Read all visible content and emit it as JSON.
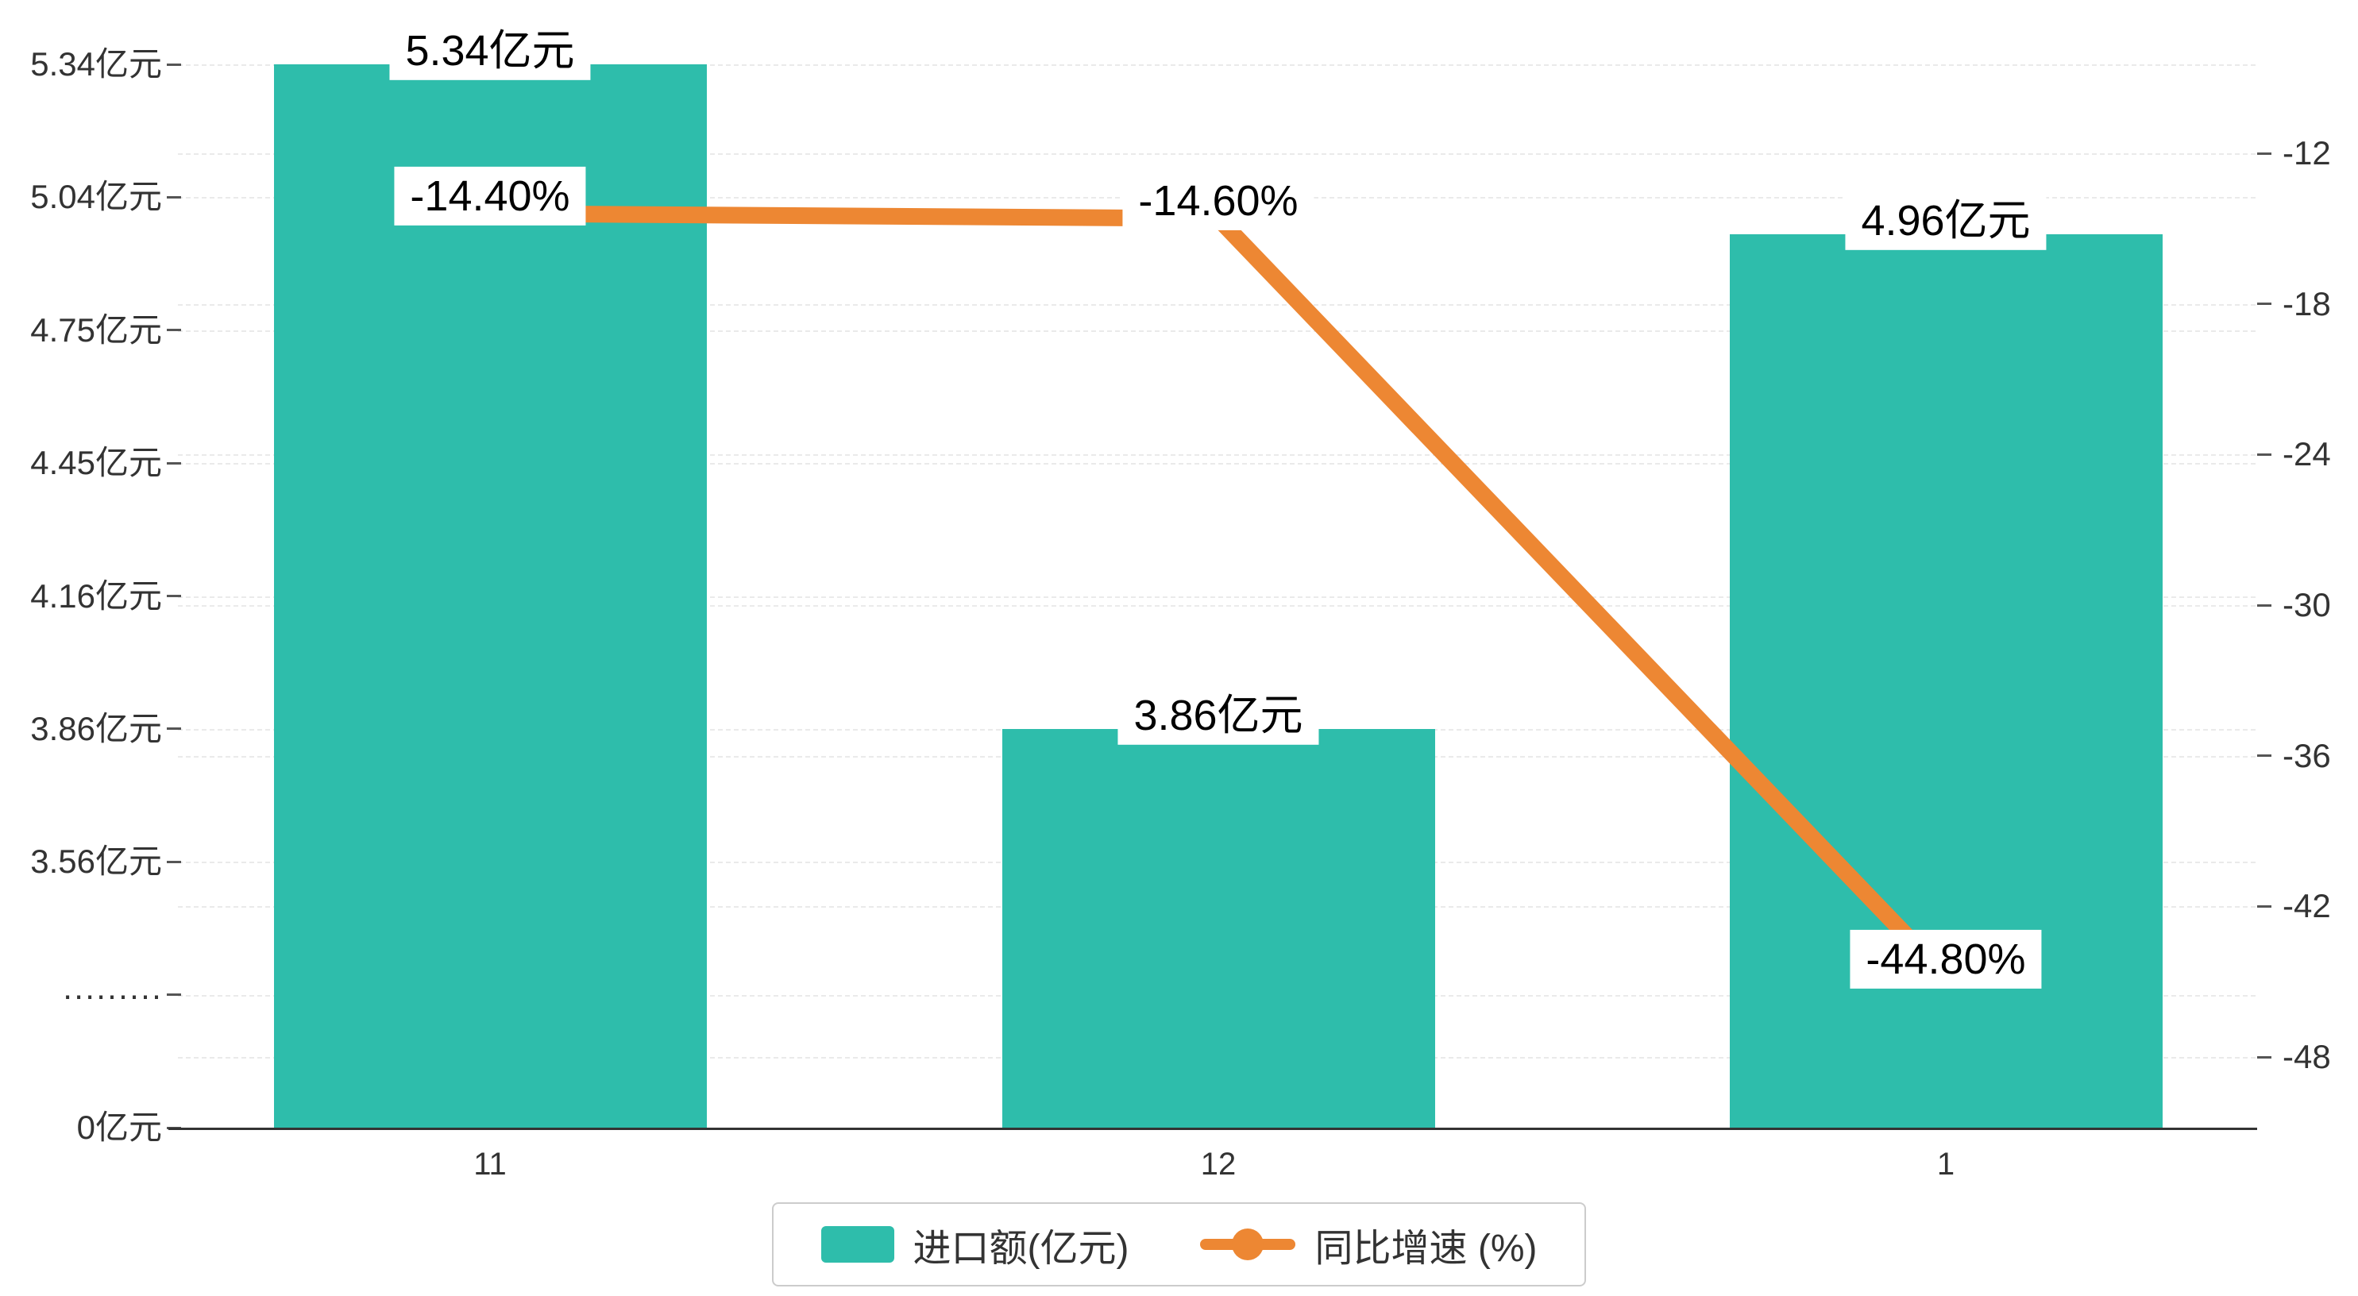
{
  "chart_data": {
    "type": "bar",
    "combo": "bar+line",
    "title": "",
    "background": "#ffffff",
    "categories": [
      "11",
      "12",
      "1"
    ],
    "series": [
      {
        "name": "进口额(亿元)",
        "type": "bar",
        "axis": "left",
        "color": "#2EBDAB",
        "values": [
          5.34,
          3.86,
          4.96
        ],
        "data_labels": [
          "5.34亿元",
          "3.86亿元",
          "4.96亿元"
        ]
      },
      {
        "name": "同比增速 (%)",
        "type": "line",
        "axis": "right",
        "color": "#ED8733",
        "values": [
          -14.4,
          -14.6,
          -44.8
        ],
        "data_labels": [
          "-14.40%",
          "-14.60%",
          "-44.80%"
        ]
      }
    ],
    "left_axis": {
      "tick_labels": [
        "5.34亿元",
        "5.04亿元",
        "4.75亿元",
        "4.45亿元",
        "4.16亿元",
        "3.86亿元",
        "3.56亿元",
        "·········",
        "0亿元"
      ],
      "tick_values": [
        5.34,
        5.04,
        4.75,
        4.45,
        4.16,
        3.86,
        3.56,
        null,
        0
      ],
      "has_break": true
    },
    "right_axis": {
      "tick_labels": [
        "-12",
        "-18",
        "-24",
        "-30",
        "-36",
        "-42",
        "-48"
      ],
      "max": -12,
      "min": -48
    },
    "x_axis": {
      "tick_labels": [
        "11",
        "12",
        "1"
      ]
    },
    "grid": true,
    "legend": {
      "position": "bottom",
      "items": [
        "进口额(亿元)",
        "同比增速 (%)"
      ]
    }
  }
}
